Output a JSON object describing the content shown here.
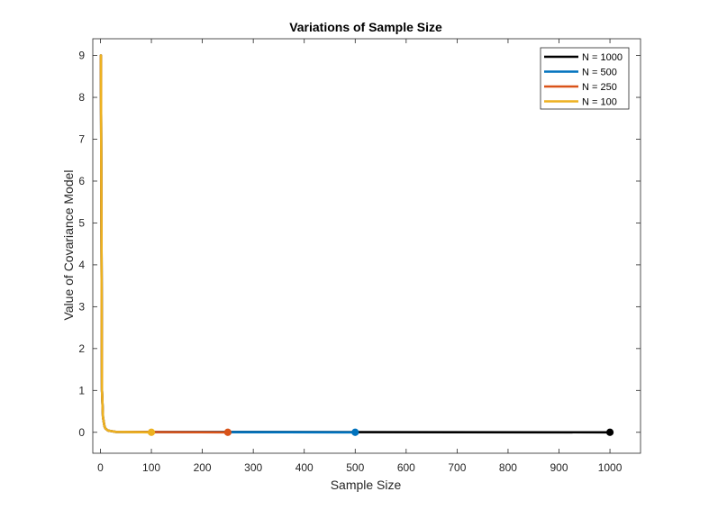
{
  "chart_data": {
    "type": "line",
    "title": "Variations of Sample Size",
    "xlabel": "Sample Size",
    "ylabel": "Value of Covariance Model",
    "xlim": [
      -15,
      1060
    ],
    "ylim": [
      -0.5,
      9.4
    ],
    "x_ticks": [
      "0",
      "100",
      "200",
      "300",
      "400",
      "500",
      "600",
      "700",
      "800",
      "900",
      "1000"
    ],
    "y_ticks": [
      "0",
      "1",
      "2",
      "3",
      "4",
      "5",
      "6",
      "7",
      "8",
      "9"
    ],
    "grid": false,
    "legend_location": "top-right",
    "series": [
      {
        "name": "N = 1000",
        "color": "#000000",
        "n": 1000,
        "x": [
          1,
          3,
          5,
          8,
          10,
          15,
          30,
          1000
        ],
        "values": [
          9,
          1.0,
          0.36,
          0.14,
          0.09,
          0.04,
          0.01,
          0
        ],
        "end_marker": [
          1000,
          0
        ]
      },
      {
        "name": "N = 500",
        "color": "#0072BD",
        "n": 500,
        "x": [
          1,
          3,
          5,
          8,
          10,
          15,
          30,
          500
        ],
        "values": [
          9,
          1.0,
          0.36,
          0.14,
          0.09,
          0.04,
          0.01,
          0
        ],
        "end_marker": [
          500,
          0
        ]
      },
      {
        "name": "N = 250",
        "color": "#D95319",
        "n": 250,
        "x": [
          1,
          3,
          5,
          8,
          10,
          15,
          30,
          250
        ],
        "values": [
          9,
          1.0,
          0.36,
          0.14,
          0.09,
          0.04,
          0.01,
          0
        ],
        "end_marker": [
          250,
          0
        ]
      },
      {
        "name": "N = 100",
        "color": "#EDB120",
        "n": 100,
        "x": [
          1,
          3,
          5,
          8,
          10,
          15,
          30,
          100
        ],
        "values": [
          9,
          1.0,
          0.36,
          0.14,
          0.09,
          0.04,
          0.01,
          0
        ],
        "end_marker": [
          100,
          0
        ]
      }
    ]
  }
}
